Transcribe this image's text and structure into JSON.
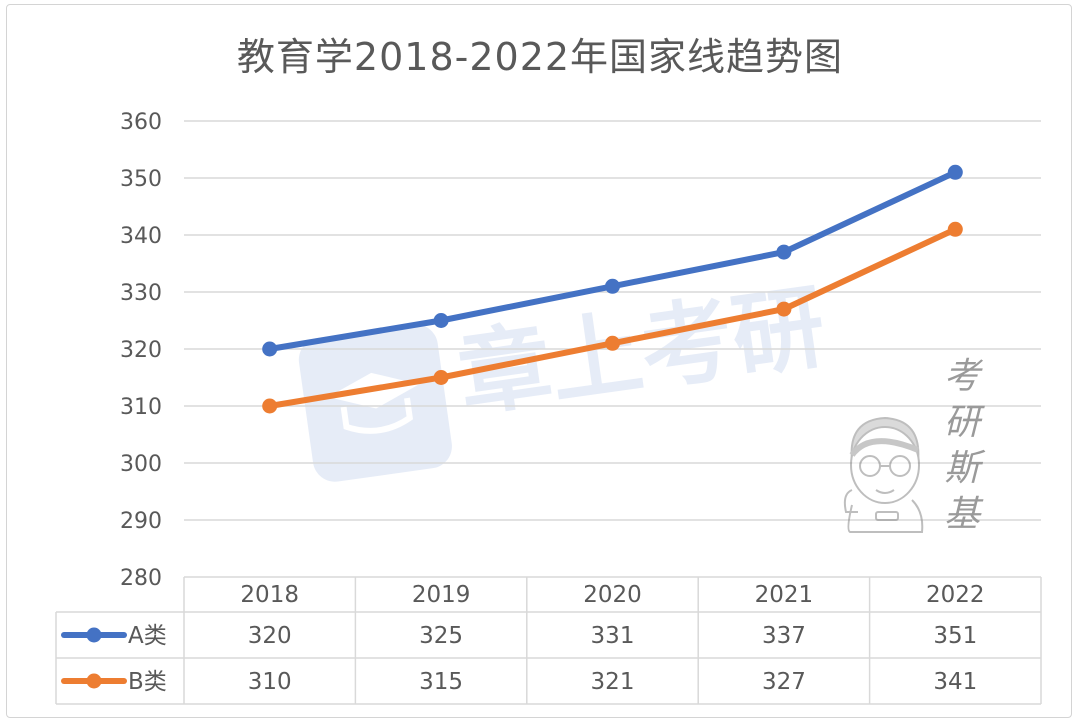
{
  "chart_data": {
    "type": "line",
    "title": "教育学2018-2022年国家线趋势图",
    "categories": [
      "2018",
      "2019",
      "2020",
      "2021",
      "2022"
    ],
    "series": [
      {
        "name": "A类",
        "values": [
          320,
          325,
          331,
          337,
          351
        ],
        "color": "#4472C4"
      },
      {
        "name": "B类",
        "values": [
          310,
          315,
          321,
          327,
          341
        ],
        "color": "#ED7D31"
      }
    ],
    "ylim": [
      280,
      360
    ],
    "y_ticks": [
      "280",
      "290",
      "300",
      "310",
      "320",
      "330",
      "340",
      "350",
      "360"
    ],
    "grid": true,
    "legend": "data-table-left"
  },
  "watermark": {
    "vertical_text": [
      "考",
      "研",
      "斯",
      "基"
    ],
    "logo_text": "章上考研",
    "mascot": "cartoon-boy-with-glasses"
  }
}
